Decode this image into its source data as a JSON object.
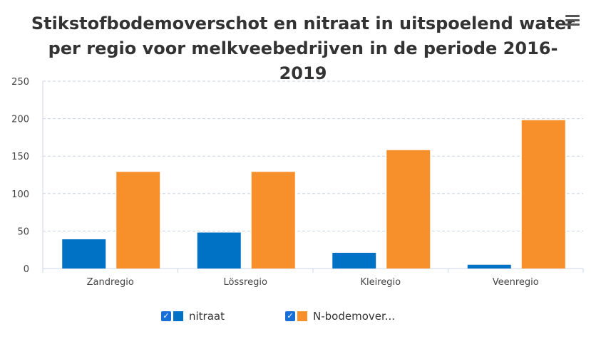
{
  "menu_icon": "hamburger-menu-icon",
  "chart_data": {
    "type": "bar",
    "title": "Stikstofbodemoverschot en nitraat in uitspoelend water per regio voor melkveebedrijven in de periode 2016-2019",
    "xlabel": "",
    "ylabel": "",
    "categories": [
      "Zandregio",
      "Lössregio",
      "Kleiregio",
      "Veenregio"
    ],
    "series": [
      {
        "name": "nitraat",
        "values": [
          39,
          48,
          21,
          5
        ],
        "color": "#0072c6"
      },
      {
        "name": "N-bodemover...",
        "values": [
          129,
          129,
          158,
          198
        ],
        "color": "#f7902a"
      }
    ],
    "ylim": [
      0,
      250
    ],
    "yticks": [
      "0",
      "50",
      "100",
      "150",
      "200",
      "250"
    ],
    "grid": true,
    "legend_position": "bottom"
  }
}
